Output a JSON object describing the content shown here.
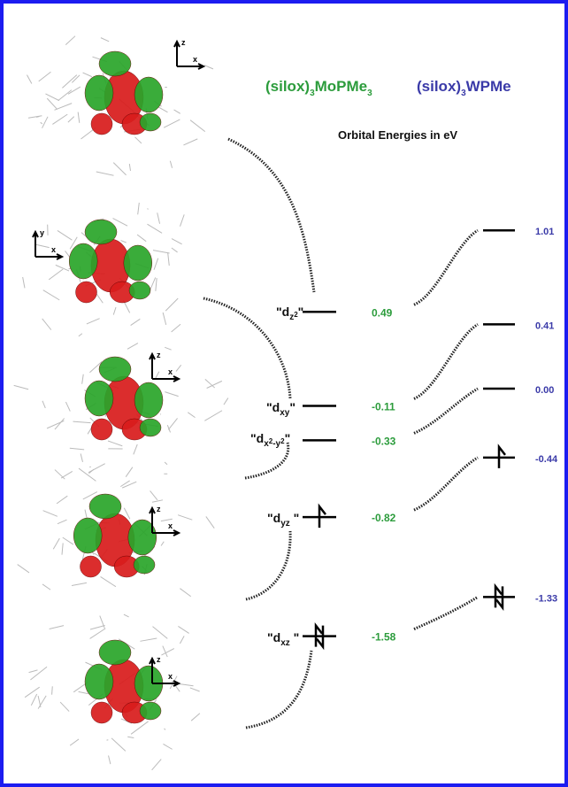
{
  "header": {
    "mo": [
      "(silox)",
      "3",
      "MoPMe",
      "3"
    ],
    "w": [
      "(silox)",
      "3",
      "WPMe"
    ],
    "subtitle": "Orbital Energies in eV"
  },
  "mo_levels": [
    {
      "label": [
        "\"d",
        "z",
        "2",
        "\""
      ],
      "energy": "0.49",
      "electrons": 0
    },
    {
      "label": [
        "\"d",
        "xy",
        "\""
      ],
      "energy": "-0.11",
      "electrons": 0
    },
    {
      "label": [
        "\"d",
        "x",
        "2",
        "-y",
        "2",
        "\""
      ],
      "energy": "-0.33",
      "electrons": 0
    },
    {
      "label": [
        "\"d",
        "yz",
        " \""
      ],
      "energy": "-0.82",
      "electrons": 1
    },
    {
      "label": [
        "\"d",
        "xz",
        " \""
      ],
      "energy": "-1.58",
      "electrons": 2
    }
  ],
  "w_levels": [
    {
      "energy": "1.01",
      "electrons": 0
    },
    {
      "energy": "0.41",
      "electrons": 0
    },
    {
      "energy": "0.00",
      "electrons": 0
    },
    {
      "energy": "-0.44",
      "electrons": 1
    },
    {
      "energy": "-1.33",
      "electrons": 2
    }
  ],
  "axes": [
    [
      "z",
      "x"
    ],
    [
      "y",
      "x"
    ],
    [
      "z",
      "x"
    ],
    [
      "z",
      "x"
    ],
    [
      "z",
      "x"
    ]
  ]
}
